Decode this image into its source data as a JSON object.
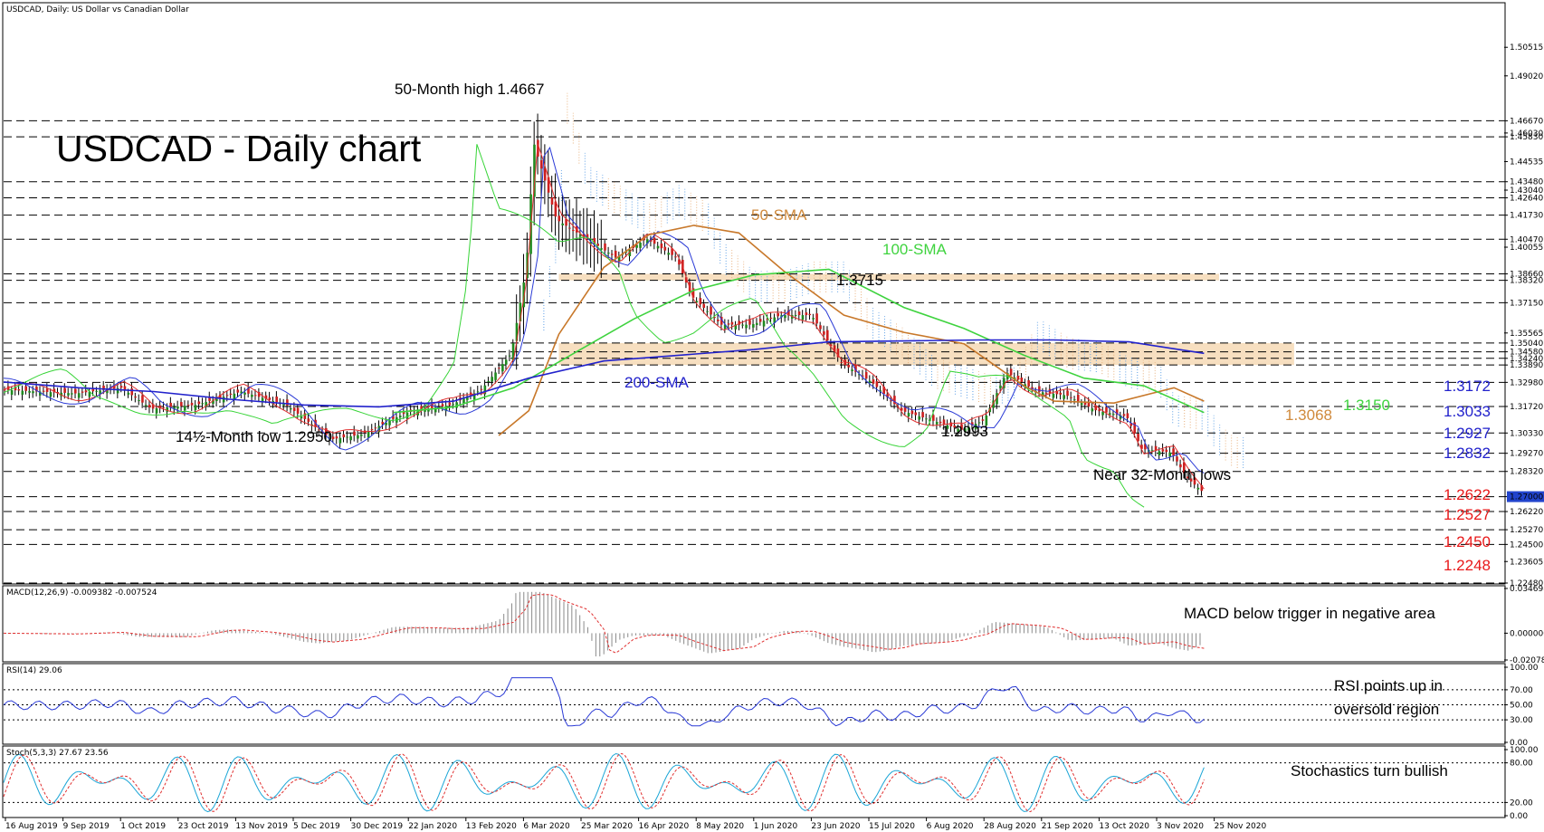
{
  "header_text": "USDCAD, Daily:  US Dollar vs Canadian Dollar",
  "title": "USDCAD - Daily chart",
  "chart_data": {
    "type": "candlestick",
    "x_tick_labels": [
      "16 Aug 2019",
      "9 Sep 2019",
      "1 Oct 2019",
      "23 Oct 2019",
      "13 Nov 2019",
      "5 Dec 2019",
      "30 Dec 2019",
      "22 Jan 2020",
      "13 Feb 2020",
      "6 Mar 2020",
      "25 Mar 2020",
      "16 Apr 2020",
      "8 May 2020",
      "1 Jun 2020",
      "23 Jun 2020",
      "15 Jul 2020",
      "6 Aug 2020",
      "28 Aug 2020",
      "21 Sep 2020",
      "13 Oct 2020",
      "3 Nov 2020",
      "25 Nov 2020"
    ],
    "main": {
      "ylim": [
        1.2248,
        1.528
      ],
      "y_tick_labels": [
        {
          "v": 1.50515,
          "t": "1.50515"
        },
        {
          "v": 1.4902,
          "t": "1.49020"
        },
        {
          "v": 1.4667,
          "t": "1.46670"
        },
        {
          "v": 1.4603,
          "t": "1.46030"
        },
        {
          "v": 1.4583,
          "t": "1.45830"
        },
        {
          "v": 1.44535,
          "t": "1.44535"
        },
        {
          "v": 1.4348,
          "t": "1.43480"
        },
        {
          "v": 1.4304,
          "t": "1.43040"
        },
        {
          "v": 1.4264,
          "t": "1.42640"
        },
        {
          "v": 1.4173,
          "t": "1.41730"
        },
        {
          "v": 1.4047,
          "t": "1.40470"
        },
        {
          "v": 1.40055,
          "t": "1.40055"
        },
        {
          "v": 1.3866,
          "t": "1.38660"
        },
        {
          "v": 1.3832,
          "t": "1.38320"
        },
        {
          "v": 1.3715,
          "t": "1.37150"
        },
        {
          "v": 1.35565,
          "t": "1.35565"
        },
        {
          "v": 1.3504,
          "t": "1.35040"
        },
        {
          "v": 1.3458,
          "t": "1.34580"
        },
        {
          "v": 1.3424,
          "t": "1.34240"
        },
        {
          "v": 1.3389,
          "t": "1.33890"
        },
        {
          "v": 1.3298,
          "t": "1.32980"
        },
        {
          "v": 1.3172,
          "t": "1.31720"
        },
        {
          "v": 1.3033,
          "t": "1.30330"
        },
        {
          "v": 1.2927,
          "t": "1.29270"
        },
        {
          "v": 1.2832,
          "t": "1.28320"
        },
        {
          "v": 1.27,
          "t": "1.27000"
        },
        {
          "v": 1.2622,
          "t": "1.26220"
        },
        {
          "v": 1.2527,
          "t": "1.25270"
        },
        {
          "v": 1.245,
          "t": "1.24500"
        },
        {
          "v": 1.23605,
          "t": "1.23605"
        },
        {
          "v": 1.2248,
          "t": "1.22480"
        }
      ],
      "current_price": {
        "v": 1.27,
        "t": "1.27000"
      },
      "horizontal_levels": [
        1.4667,
        1.4583,
        1.4348,
        1.4264,
        1.4173,
        1.4047,
        1.3866,
        1.3832,
        1.3715,
        1.3504,
        1.3458,
        1.3424,
        1.3389,
        1.3298,
        1.3172,
        1.3033,
        1.2927,
        1.2832,
        1.27,
        1.2622,
        1.2527,
        1.245,
        1.2248
      ],
      "zones": [
        [
          1.3832,
          1.3866
        ],
        [
          1.3389,
          1.3504
        ]
      ],
      "series": [
        {
          "name": "50-SMA",
          "color": "#c8782a",
          "points": [
            [
              0.33,
              1.302
            ],
            [
              0.35,
              1.315
            ],
            [
              0.37,
              1.355
            ],
            [
              0.4,
              1.39
            ],
            [
              0.43,
              1.407
            ],
            [
              0.46,
              1.412
            ],
            [
              0.49,
              1.408
            ],
            [
              0.52,
              1.388
            ],
            [
              0.56,
              1.365
            ],
            [
              0.6,
              1.356
            ],
            [
              0.64,
              1.35
            ],
            [
              0.68,
              1.328
            ],
            [
              0.7,
              1.32
            ],
            [
              0.74,
              1.319
            ],
            [
              0.78,
              1.327
            ],
            [
              0.8,
              1.32
            ]
          ]
        },
        {
          "name": "100-SMA",
          "color": "#3fd33f",
          "points": [
            [
              0.26,
              1.314
            ],
            [
              0.3,
              1.317
            ],
            [
              0.34,
              1.327
            ],
            [
              0.38,
              1.345
            ],
            [
              0.42,
              1.363
            ],
            [
              0.46,
              1.378
            ],
            [
              0.5,
              1.386
            ],
            [
              0.55,
              1.389
            ],
            [
              0.6,
              1.369
            ],
            [
              0.64,
              1.358
            ],
            [
              0.68,
              1.344
            ],
            [
              0.72,
              1.332
            ],
            [
              0.76,
              1.328
            ],
            [
              0.8,
              1.314
            ]
          ]
        },
        {
          "name": "200-SMA",
          "color": "#2222cc",
          "points": [
            [
              0,
              1.33
            ],
            [
              0.05,
              1.327
            ],
            [
              0.1,
              1.325
            ],
            [
              0.15,
              1.321
            ],
            [
              0.2,
              1.318
            ],
            [
              0.25,
              1.317
            ],
            [
              0.3,
              1.32
            ],
            [
              0.35,
              1.332
            ],
            [
              0.4,
              1.341
            ],
            [
              0.45,
              1.344
            ],
            [
              0.5,
              1.347
            ],
            [
              0.55,
              1.351
            ],
            [
              0.6,
              1.3515
            ],
            [
              0.65,
              1.352
            ],
            [
              0.7,
              1.352
            ],
            [
              0.75,
              1.351
            ],
            [
              0.8,
              1.345
            ]
          ]
        }
      ]
    },
    "macd": {
      "label": "MACD(12,26,9) -0.009382 -0.007524",
      "ylim": [
        -0.020785,
        0.034698
      ],
      "y_tick_labels": [
        {
          "v": 0.034698,
          "t": "0.034698"
        },
        {
          "v": 0,
          "t": "0.000000"
        },
        {
          "v": -0.020785,
          "t": "-0.020785"
        }
      ]
    },
    "rsi": {
      "label": "RSI(14) 29.06",
      "ylim": [
        0,
        100
      ],
      "y_tick_labels": [
        {
          "v": 100,
          "t": "100.00"
        },
        {
          "v": 70,
          "t": "70.00"
        },
        {
          "v": 50,
          "t": "50.00"
        },
        {
          "v": 30,
          "t": "30.00"
        },
        {
          "v": 0,
          "t": "0.00"
        }
      ]
    },
    "stoch": {
      "label": "Stoch(5,3,3) 27.67 23.56",
      "ylim": [
        0,
        100
      ],
      "y_tick_labels": [
        {
          "v": 100,
          "t": "100.00"
        },
        {
          "v": 80,
          "t": "80.00"
        },
        {
          "v": 20,
          "t": "20.00"
        },
        {
          "v": 0,
          "t": "0.00"
        }
      ]
    },
    "annotations": [
      {
        "text": "50-Month high 1.4667",
        "color": "#000000"
      },
      {
        "text": "14½-Month low 1.2950",
        "color": "#000000"
      },
      {
        "text": "50-SMA",
        "color": "#d08a3c"
      },
      {
        "text": "100-SMA",
        "color": "#3fd33f"
      },
      {
        "text": "200-SMA",
        "color": "#2222cc"
      },
      {
        "text": "1.3715",
        "color": "#000000"
      },
      {
        "text": "1.2993",
        "color": "#000000"
      },
      {
        "text": "Near 32-Month lows",
        "color": "#000000"
      },
      {
        "text": "1.3068",
        "color": "#d08a3c"
      },
      {
        "text": "1.3150",
        "color": "#3fd33f"
      },
      {
        "text": "MACD below trigger in negative area",
        "color": "#000000"
      },
      {
        "text": "RSI points up in",
        "color": "#000000"
      },
      {
        "text": "oversold region",
        "color": "#000000"
      },
      {
        "text": "Stochastics turn bullish",
        "color": "#000000"
      }
    ],
    "right_labels_blue": [
      "1.3172",
      "1.3033",
      "1.2927",
      "1.2832"
    ],
    "right_labels_red": [
      "1.2622",
      "1.2527",
      "1.2450",
      "1.2248"
    ]
  }
}
